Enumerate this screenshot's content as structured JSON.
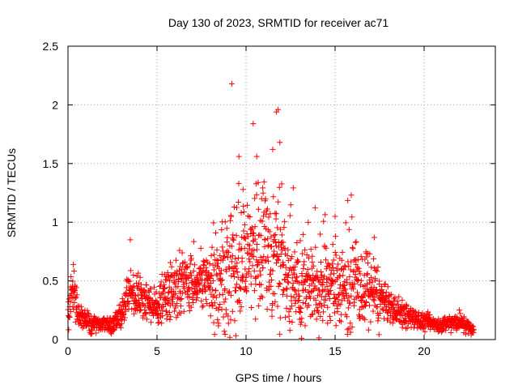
{
  "chart_data": {
    "type": "scatter",
    "title": "Day 130 of 2023, SRMTID for receiver ac71",
    "xlabel": "GPS time / hours",
    "ylabel": "SRMTID / TECUs",
    "xlim": [
      0,
      24
    ],
    "ylim": [
      0,
      2.5
    ],
    "xticks": [
      "0",
      "5",
      "10",
      "15",
      "20"
    ],
    "yticks": [
      "0",
      "0.5",
      "1",
      "1.5",
      "2",
      "2.5"
    ],
    "grid": true,
    "marker": "+",
    "color": "#ff0000",
    "x_range_of_points": [
      0,
      22.8
    ],
    "envelope": [
      {
        "x": 0.0,
        "y": 0.2
      },
      {
        "x": 0.3,
        "y": 0.45
      },
      {
        "x": 0.6,
        "y": 0.2
      },
      {
        "x": 1.5,
        "y": 0.13
      },
      {
        "x": 2.5,
        "y": 0.13
      },
      {
        "x": 3.0,
        "y": 0.22
      },
      {
        "x": 3.5,
        "y": 0.42
      },
      {
        "x": 4.0,
        "y": 0.35
      },
      {
        "x": 4.5,
        "y": 0.3
      },
      {
        "x": 5.0,
        "y": 0.28
      },
      {
        "x": 5.5,
        "y": 0.38
      },
      {
        "x": 6.0,
        "y": 0.45
      },
      {
        "x": 7.0,
        "y": 0.5
      },
      {
        "x": 8.0,
        "y": 0.48
      },
      {
        "x": 9.0,
        "y": 0.58
      },
      {
        "x": 10.0,
        "y": 0.7
      },
      {
        "x": 10.5,
        "y": 0.75
      },
      {
        "x": 11.0,
        "y": 0.72
      },
      {
        "x": 12.0,
        "y": 0.65
      },
      {
        "x": 13.0,
        "y": 0.48
      },
      {
        "x": 14.0,
        "y": 0.42
      },
      {
        "x": 15.0,
        "y": 0.48
      },
      {
        "x": 16.0,
        "y": 0.45
      },
      {
        "x": 17.0,
        "y": 0.42
      },
      {
        "x": 18.0,
        "y": 0.28
      },
      {
        "x": 19.0,
        "y": 0.2
      },
      {
        "x": 20.0,
        "y": 0.15
      },
      {
        "x": 21.0,
        "y": 0.13
      },
      {
        "x": 22.0,
        "y": 0.15
      },
      {
        "x": 22.8,
        "y": 0.08
      }
    ],
    "notable_points": [
      {
        "x": 9.2,
        "y": 2.18
      },
      {
        "x": 11.8,
        "y": 1.96
      },
      {
        "x": 11.7,
        "y": 1.94
      },
      {
        "x": 10.4,
        "y": 1.84
      },
      {
        "x": 11.9,
        "y": 1.68
      },
      {
        "x": 11.5,
        "y": 1.62
      },
      {
        "x": 10.6,
        "y": 1.56
      },
      {
        "x": 9.6,
        "y": 1.56
      },
      {
        "x": 15.0,
        "y": 1.05
      },
      {
        "x": 3.5,
        "y": 0.85
      },
      {
        "x": 17.2,
        "y": 0.87
      },
      {
        "x": 0.3,
        "y": 0.64
      }
    ]
  }
}
